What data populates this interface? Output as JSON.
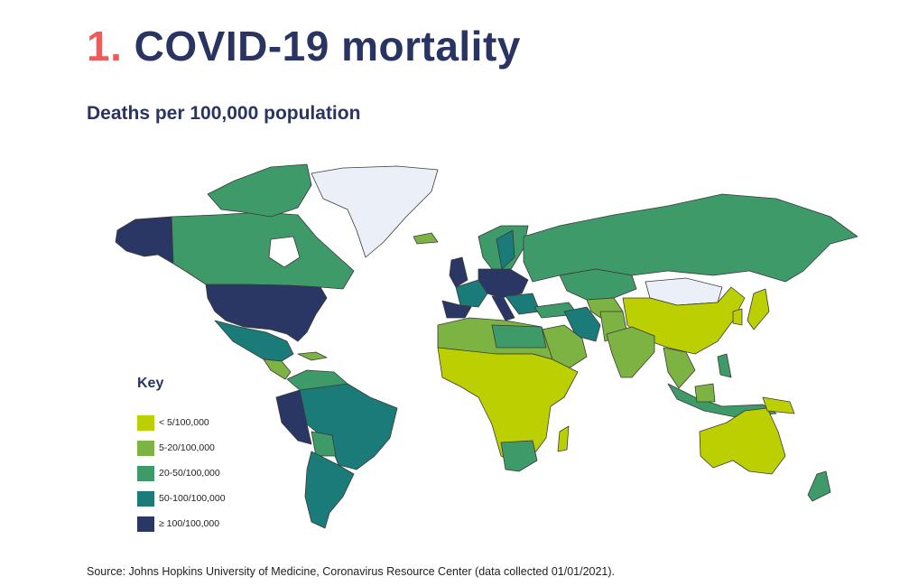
{
  "title": {
    "number": "1.",
    "text": "COVID-19 mortality"
  },
  "subtitle": "Deaths per 100,000 population",
  "key": {
    "title": "Key",
    "items": [
      {
        "label": "< 5/100,000",
        "color": "#bccf00"
      },
      {
        "label": "5-20/100,000",
        "color": "#7cb342"
      },
      {
        "label": "20-50/100,000",
        "color": "#3e9a68"
      },
      {
        "label": "50-100/100,000",
        "color": "#1b7b78"
      },
      {
        "label": "≥ 100/100,000",
        "color": "#2a3764"
      }
    ],
    "no_data_color": "#eaeff8"
  },
  "source": "Source: Johns Hopkins University of Medicine, Coronavirus Resource Center (data collected 01/01/2021)."
}
